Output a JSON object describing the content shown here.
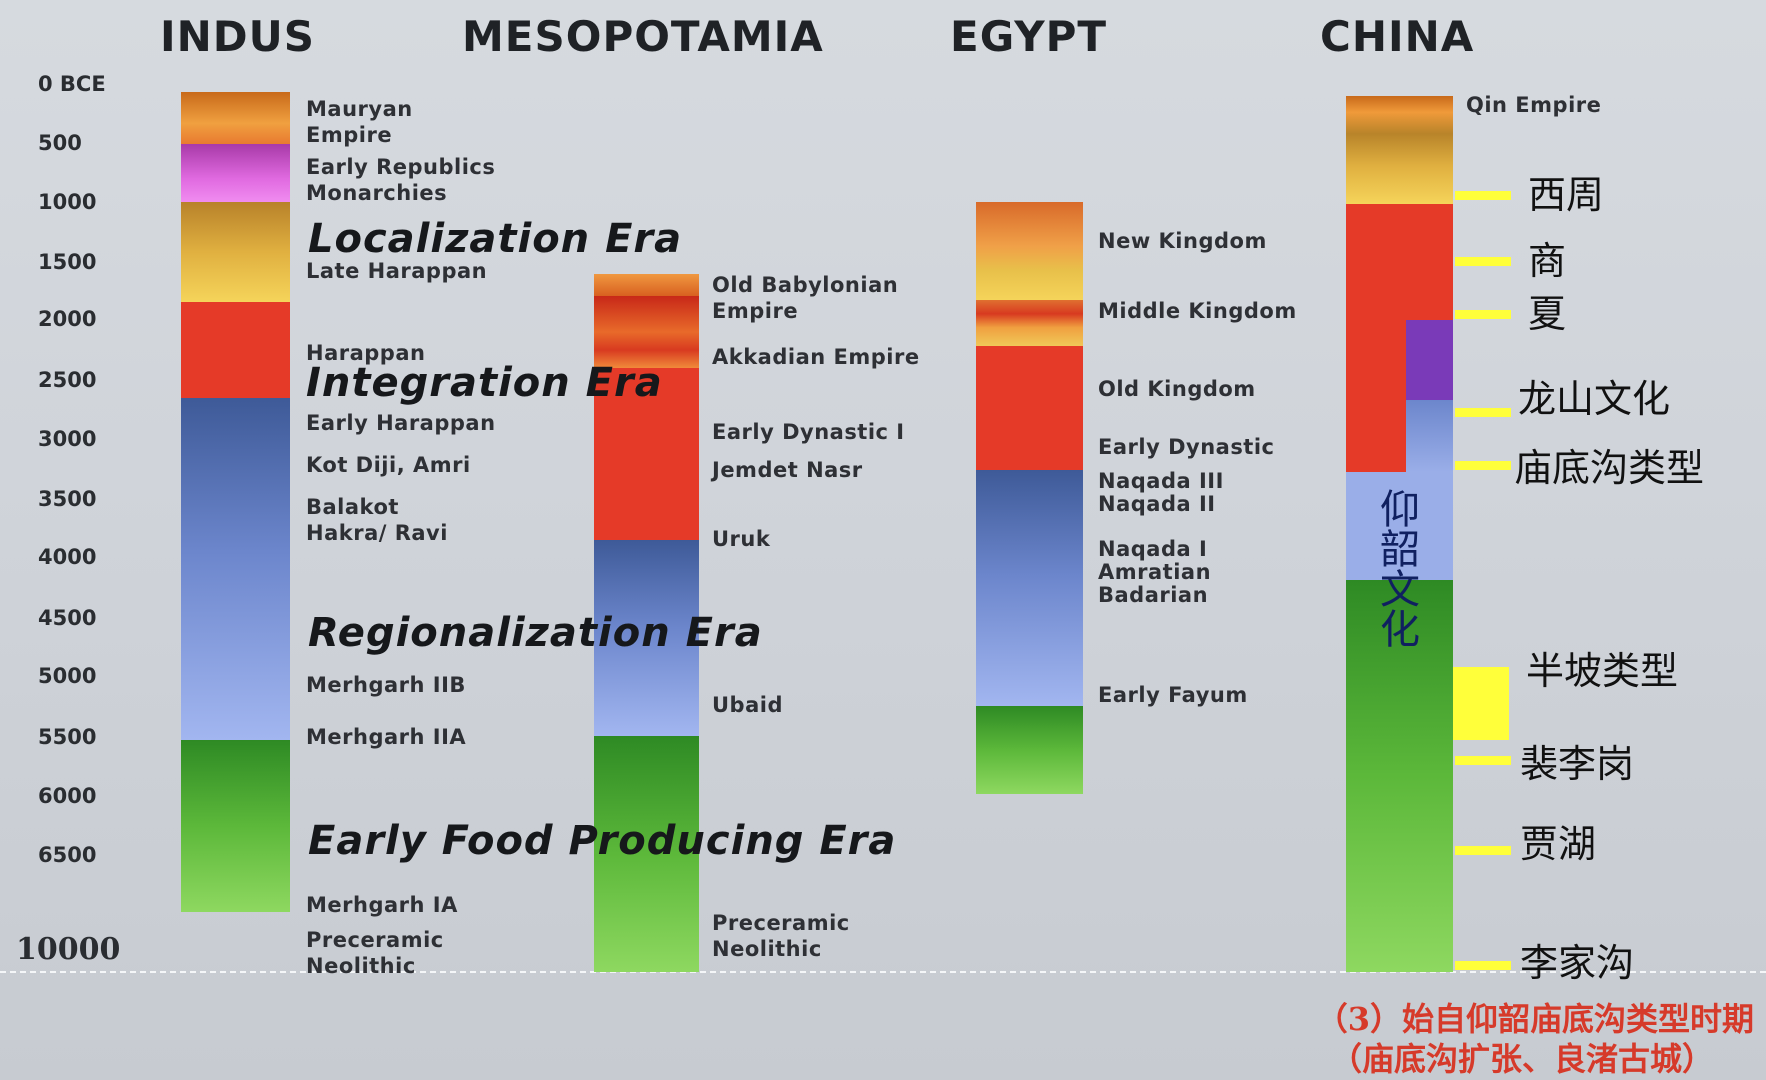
{
  "titles": {
    "indus": "INDUS",
    "mesopotamia": "MESOPOTAMIA",
    "egypt": "EGYPT",
    "china": "CHINA"
  },
  "y_axis": [
    "0 BCE",
    "500",
    "1000",
    "1500",
    "2000",
    "2500",
    "3000",
    "3500",
    "4000",
    "4500",
    "5000",
    "5500",
    "6000",
    "6500",
    "10000"
  ],
  "indus": {
    "labels": [
      "Mauryan\nEmpire",
      "Early Republics\nMonarchies",
      "Late Harappan",
      "Harappan",
      "Early Harappan",
      "Kot Diji, Amri",
      "Balakot\nHakra/ Ravi",
      "Merhgarh IIB",
      "Merhgarh IIA",
      "Merhgarh IA",
      "Preceramic\nNeolithic"
    ]
  },
  "eras": {
    "localization": "Localization Era",
    "integration": "Integration Era",
    "regionalization": "Regionalization Era",
    "early_food": "Early Food Producing Era"
  },
  "mesopotamia": {
    "labels": [
      "Old Babylonian\nEmpire",
      "Akkadian Empire",
      "Early Dynastic I",
      "Jemdet Nasr",
      "Uruk",
      "Ubaid",
      "Preceramic\nNeolithic"
    ]
  },
  "egypt": {
    "labels": [
      "New Kingdom",
      "Middle Kingdom",
      "Old Kingdom",
      "Early Dynastic",
      "Naqada III\nNaqada II",
      "Naqada I\nAmratian\nBadarian",
      "Early Fayum"
    ]
  },
  "china": {
    "qin": "Qin Empire",
    "cjk": [
      "西周",
      "商",
      "夏",
      "龙山文化",
      "庙底沟类型",
      "半坡类型",
      "裴李岗",
      "贾湖",
      "李家沟"
    ],
    "yangshao": "仰韶文化"
  },
  "note": {
    "line1": "（3）始自仰韶庙底沟类型时期",
    "line2": "（庙底沟扩张、良渚古城）"
  },
  "colors": {
    "orange": "#e8893a",
    "magenta": "#c94fc4",
    "gold": "#e8c45a",
    "red": "#e43a2a",
    "blue": "#4a64a8",
    "lightblue": "#9aaee8",
    "green": "#3a9a2a",
    "lightgreen": "#8ad85a",
    "purple": "#7a3ab8",
    "yellow": "#ffff3a"
  }
}
